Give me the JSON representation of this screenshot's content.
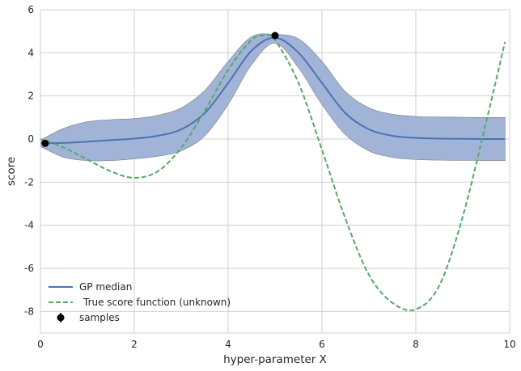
{
  "chart_data": {
    "type": "line",
    "title": "",
    "xlabel": "hyper-parameter X",
    "ylabel": "score",
    "xlim": [
      0,
      10
    ],
    "ylim": [
      -9,
      6
    ],
    "xticks": [
      0,
      2,
      4,
      6,
      8,
      10
    ],
    "yticks": [
      6,
      4,
      2,
      0,
      -2,
      -4,
      -6,
      -8
    ],
    "grid": true,
    "legend_position": "lower-left",
    "colors": {
      "median": "#4c72b0",
      "band": "#a1b4d8",
      "band_edge": "#7d7d7d",
      "true": "#55a868",
      "samples": "#000000"
    },
    "series": [
      {
        "name": "GP median",
        "style": "solid",
        "x": [
          0,
          0.5,
          1,
          1.5,
          2,
          2.5,
          3,
          3.5,
          4,
          4.5,
          5,
          5.5,
          6,
          6.5,
          7,
          7.5,
          8,
          8.5,
          9,
          9.5,
          9.9
        ],
        "y": [
          -0.2,
          -0.18,
          -0.12,
          -0.05,
          0.02,
          0.15,
          0.45,
          1.2,
          2.6,
          4.1,
          4.7,
          4.0,
          2.6,
          1.2,
          0.45,
          0.15,
          0.05,
          0.02,
          0.01,
          0.0,
          0.0
        ]
      },
      {
        "name": "GP band upper",
        "style": "band",
        "x": [
          0,
          0.5,
          1,
          1.5,
          2,
          2.5,
          3,
          3.5,
          4,
          4.5,
          5,
          5.5,
          6,
          6.5,
          7,
          7.5,
          8,
          8.5,
          9,
          9.5,
          9.9
        ],
        "y": [
          -0.05,
          0.5,
          0.8,
          0.9,
          0.95,
          1.1,
          1.45,
          2.25,
          3.6,
          4.75,
          4.85,
          4.65,
          3.6,
          2.2,
          1.45,
          1.15,
          1.05,
          1.02,
          1.01,
          1.0,
          1.0
        ]
      },
      {
        "name": "GP band lower",
        "style": "band",
        "x": [
          0,
          0.5,
          1,
          1.5,
          2,
          2.5,
          3,
          3.5,
          4,
          4.5,
          5,
          5.5,
          6,
          6.5,
          7,
          7.5,
          8,
          8.5,
          9,
          9.5,
          9.9
        ],
        "y": [
          -0.35,
          -0.85,
          -1.0,
          -1.0,
          -0.92,
          -0.8,
          -0.55,
          0.15,
          1.6,
          3.45,
          4.45,
          3.3,
          1.6,
          0.2,
          -0.55,
          -0.85,
          -0.95,
          -0.98,
          -0.99,
          -1.0,
          -1.0
        ]
      },
      {
        "name": "True score function (unknown)",
        "style": "dashed",
        "x": [
          0,
          0.5,
          1,
          1.5,
          2,
          2.5,
          3,
          3.5,
          4,
          4.5,
          4.8,
          5,
          5.5,
          6,
          6.5,
          7,
          7.5,
          8,
          8.5,
          9,
          9.5,
          9.9
        ],
        "y": [
          0,
          -0.4,
          -0.95,
          -1.5,
          -1.8,
          -1.5,
          -0.4,
          1.3,
          3.2,
          4.6,
          4.8,
          4.6,
          2.6,
          -0.5,
          -3.7,
          -6.3,
          -7.6,
          -7.9,
          -6.8,
          -3.6,
          0.8,
          4.5
        ]
      }
    ],
    "samples": {
      "name": "samples",
      "x": [
        0.1,
        5.0
      ],
      "y": [
        -0.2,
        4.8
      ],
      "err": [
        0.1,
        0.1
      ]
    },
    "legend": [
      "GP median",
      "True score function (unknown)",
      "samples"
    ]
  }
}
